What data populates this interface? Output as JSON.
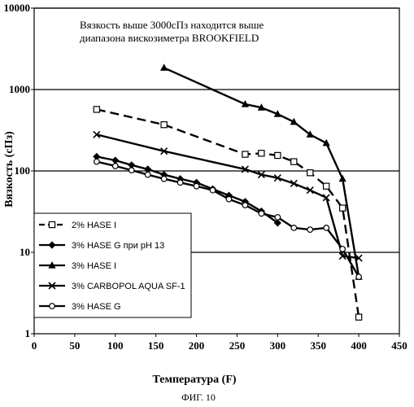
{
  "chart_data": {
    "type": "line",
    "title": "",
    "annotation": [
      "Вязкость выше 3000сПз находится выше",
      "диапазона вискозиметра BROOKFIELD"
    ],
    "xlabel": "Температура (F)",
    "ylabel": "Вязкость (сПз)",
    "caption": "ФИГ. 10",
    "xlim": [
      0,
      450
    ],
    "ylim": [
      1,
      10000
    ],
    "yscale": "log",
    "x_ticks": [
      "0",
      "50",
      "100",
      "150",
      "200",
      "250",
      "300",
      "350",
      "400",
      "450"
    ],
    "y_ticks": [
      "1",
      "10",
      "100",
      "1000",
      "10000"
    ],
    "grid": "horizontal",
    "legend_position": "bottom-left",
    "series": [
      {
        "name": "2% HASE I",
        "marker": "square-open",
        "line": "dashed",
        "x": [
          77,
          160,
          260,
          280,
          300,
          320,
          340,
          360,
          380,
          400
        ],
        "y": [
          570,
          370,
          160,
          165,
          155,
          130,
          95,
          65,
          35,
          1.6
        ]
      },
      {
        "name": "3% HASE G при pH 13",
        "marker": "diamond",
        "line": "solid",
        "x": [
          77,
          100,
          120,
          140,
          160,
          180,
          200,
          220,
          240,
          260,
          280,
          300
        ],
        "y": [
          150,
          135,
          118,
          105,
          90,
          80,
          72,
          60,
          50,
          42,
          32,
          23
        ]
      },
      {
        "name": "3% HASE I",
        "marker": "triangle",
        "line": "solid",
        "x": [
          160,
          260,
          280,
          300,
          320,
          340,
          360,
          380,
          400
        ],
        "y": [
          1850,
          660,
          600,
          500,
          400,
          280,
          220,
          80,
          5
        ]
      },
      {
        "name": "3% CARBOPOL AQUA SF-1",
        "marker": "x",
        "line": "solid",
        "x": [
          77,
          160,
          260,
          280,
          300,
          320,
          340,
          360,
          380,
          400
        ],
        "y": [
          280,
          175,
          105,
          90,
          82,
          70,
          58,
          47,
          9,
          8.5
        ]
      },
      {
        "name": "3% HASE G",
        "marker": "circle-open",
        "line": "solid",
        "x": [
          77,
          100,
          120,
          140,
          160,
          180,
          200,
          220,
          240,
          260,
          280,
          300,
          320,
          340,
          360,
          380,
          400
        ],
        "y": [
          130,
          115,
          102,
          90,
          80,
          72,
          65,
          58,
          45,
          38,
          30,
          27,
          20,
          19,
          20,
          11,
          5
        ]
      }
    ]
  }
}
